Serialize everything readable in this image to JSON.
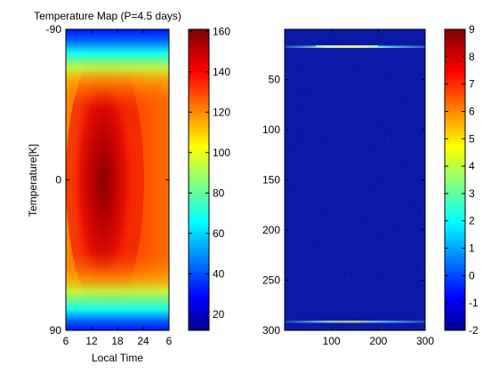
{
  "chart_data": [
    {
      "type": "heatmap",
      "title": "Temperature Map (P=4.5 days)",
      "xlabel": "Local Time",
      "ylabel": "Temperature[K]",
      "x_ticks": [
        "6",
        "12",
        "18",
        "24",
        "6"
      ],
      "y_ticks": [
        "-90",
        "0",
        "90"
      ],
      "colorbar": {
        "range": [
          12,
          161
        ],
        "ticks": [
          20,
          40,
          60,
          80,
          100,
          120,
          140,
          160
        ],
        "tick_labels": [
          "20",
          "40",
          "60",
          "80",
          "100",
          "120",
          "140",
          "160"
        ]
      },
      "description": "Hot region centered near local time 12-15 on the equator (max ~160 K), cooling toward the poles and the night side (min ~15 K at the poles)."
    },
    {
      "type": "heatmap",
      "xlabel": "",
      "ylabel": "",
      "x_ticks": [
        "100",
        "200",
        "300"
      ],
      "y_ticks": [
        "50",
        "100",
        "150",
        "200",
        "250",
        "300"
      ],
      "xlim": [
        0,
        300
      ],
      "ylim": [
        0,
        300
      ],
      "colorbar": {
        "range": [
          -2,
          9
        ],
        "ticks": [
          -2,
          -1,
          0,
          1,
          2,
          3,
          4,
          5,
          6,
          7,
          8,
          9
        ],
        "tick_labels": [
          "-2",
          "-1",
          "0",
          "1",
          "2",
          "3",
          "4",
          "5",
          "6",
          "7",
          "8",
          "9"
        ]
      },
      "description": "Nearly uniform field near the minimum value with two bright thin bands near rows 20 and 292."
    }
  ]
}
